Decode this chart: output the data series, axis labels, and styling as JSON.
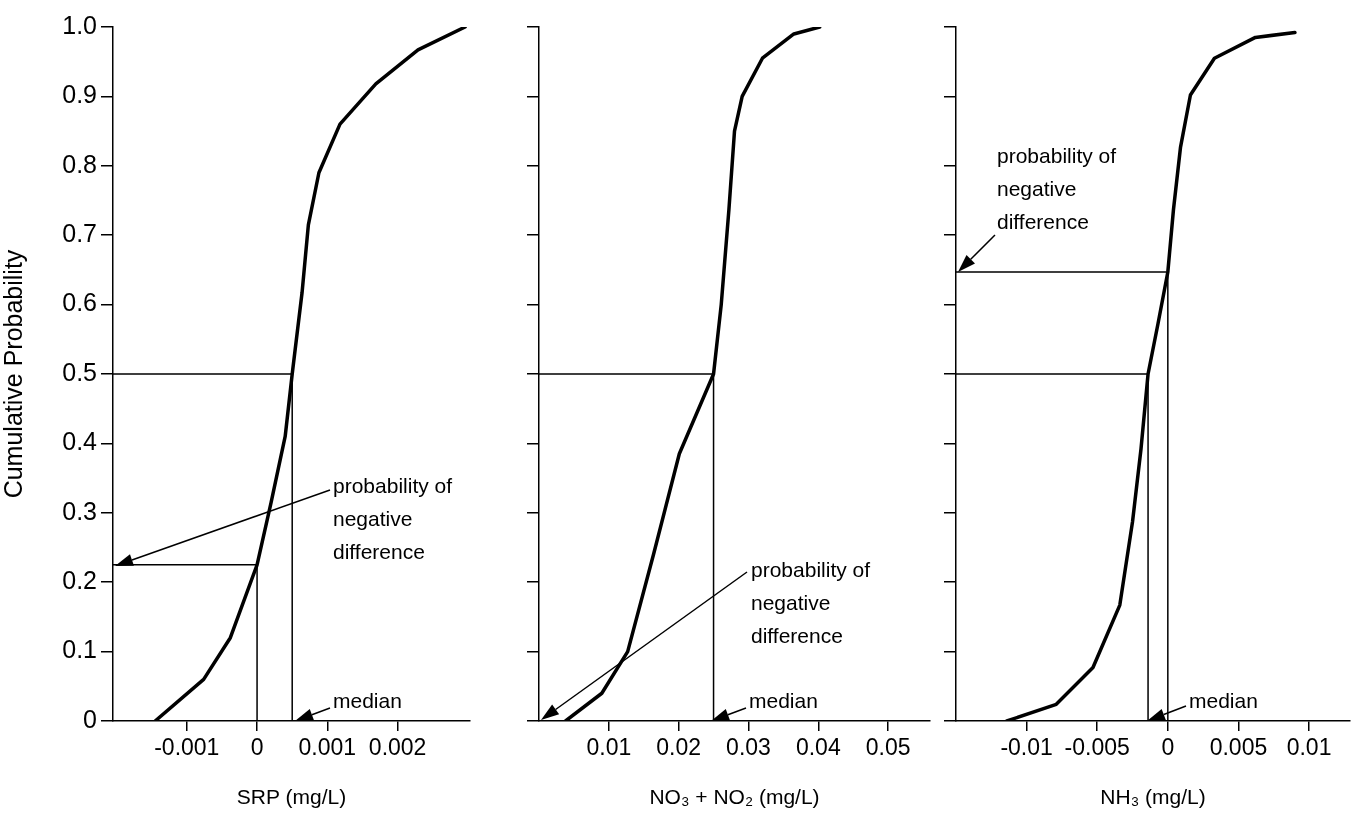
{
  "chart_data": [
    {
      "type": "line",
      "xlabel": "SRP (mg/L)",
      "ylabel": "Cumulative Probability",
      "xlim": [
        -0.00205,
        0.00303
      ],
      "ylim": [
        0,
        1
      ],
      "xticks": [
        -0.001,
        0,
        0.001,
        0.002
      ],
      "yticks": [
        0,
        0.1,
        0.2,
        0.3,
        0.4,
        0.5,
        0.6,
        0.7,
        0.8,
        0.9,
        {
          "value": 1,
          "label": "1.0"
        }
      ],
      "series": [
        {
          "color": "#000000",
          "x": [
            -0.00145,
            -0.00076,
            -0.00038,
            0,
            0.0002,
            0.0004,
            0.0005,
            0.00064,
            0.00073,
            0.00088,
            0.00118,
            0.00169,
            0.00229,
            0.00296
          ],
          "values": [
            0,
            0.06,
            0.12,
            0.225,
            0.315,
            0.41,
            0.5,
            0.617,
            0.715,
            0.79,
            0.86,
            0.918,
            0.967,
            1
          ]
        },
        {
          "color": "#000000",
          "x": [
            -0.00205,
            0.0005,
            0.0005
          ],
          "values": [
            0.5,
            0.5,
            0
          ]
        },
        {
          "color": "#000000",
          "x": [
            -0.00205,
            0,
            0
          ],
          "values": [
            0.225,
            0.225,
            0
          ]
        }
      ],
      "annotations": [
        "probability of negative difference",
        "median"
      ]
    },
    {
      "type": "line",
      "xlabel": "NO₃ + NO₂ (mg/L)",
      "xlim": [
        0,
        0.056
      ],
      "ylim": [
        0,
        1
      ],
      "xticks": [
        0.01,
        0.02,
        0.03,
        0.04,
        0.05
      ],
      "yticks": [
        0,
        0.1,
        0.2,
        0.3,
        0.4,
        0.5,
        0.6,
        0.7,
        0.8,
        0.9,
        1
      ],
      "tick_labels": "x",
      "series": [
        {
          "color": "#000000",
          "x": [
            0.0038,
            0.009,
            0.0127,
            0.0164,
            0.0201,
            0.025,
            0.0261,
            0.0272,
            0.028,
            0.0291,
            0.032,
            0.0365,
            0.0402
          ],
          "values": [
            0,
            0.04,
            0.1,
            0.24,
            0.385,
            0.5,
            0.6,
            0.737,
            0.85,
            0.9,
            0.955,
            0.99,
            1
          ]
        },
        {
          "color": "#000000",
          "x": [
            0,
            0.025,
            0.025
          ],
          "values": [
            0.5,
            0.5,
            0
          ]
        }
      ],
      "annotations": [
        "probability of negative difference",
        "median"
      ]
    },
    {
      "type": "line",
      "xlabel": "NH₃ (mg/L)",
      "xlim": [
        -0.015,
        0.0129
      ],
      "ylim": [
        0,
        1
      ],
      "xticks": [
        -0.01,
        -0.005,
        0,
        0.005,
        0.01
      ],
      "yticks": [
        0,
        0.1,
        0.2,
        0.3,
        0.4,
        0.5,
        0.6,
        0.7,
        0.8,
        0.9,
        1
      ],
      "tick_labels": "x",
      "series": [
        {
          "color": "#000000",
          "x": [
            -0.0114,
            -0.0079,
            -0.0053,
            -0.0034,
            -0.0025,
            -0.0019,
            -0.0014,
            -0.0007,
            0,
            0.0004,
            0.0009,
            0.0016,
            0.0033,
            0.0062,
            0.009
          ],
          "values": [
            0,
            0.024,
            0.077,
            0.167,
            0.287,
            0.392,
            0.5,
            0.572,
            0.647,
            0.737,
            0.827,
            0.902,
            0.955,
            0.985,
            0.992
          ]
        },
        {
          "color": "#000000",
          "x": [
            -0.015,
            -0.0014,
            -0.0014
          ],
          "values": [
            0.5,
            0.5,
            0
          ]
        },
        {
          "color": "#000000",
          "x": [
            -0.015,
            0,
            0
          ],
          "values": [
            0.647,
            0.647,
            0
          ]
        }
      ],
      "annotations": [
        "probability of negative difference",
        "median"
      ]
    }
  ]
}
